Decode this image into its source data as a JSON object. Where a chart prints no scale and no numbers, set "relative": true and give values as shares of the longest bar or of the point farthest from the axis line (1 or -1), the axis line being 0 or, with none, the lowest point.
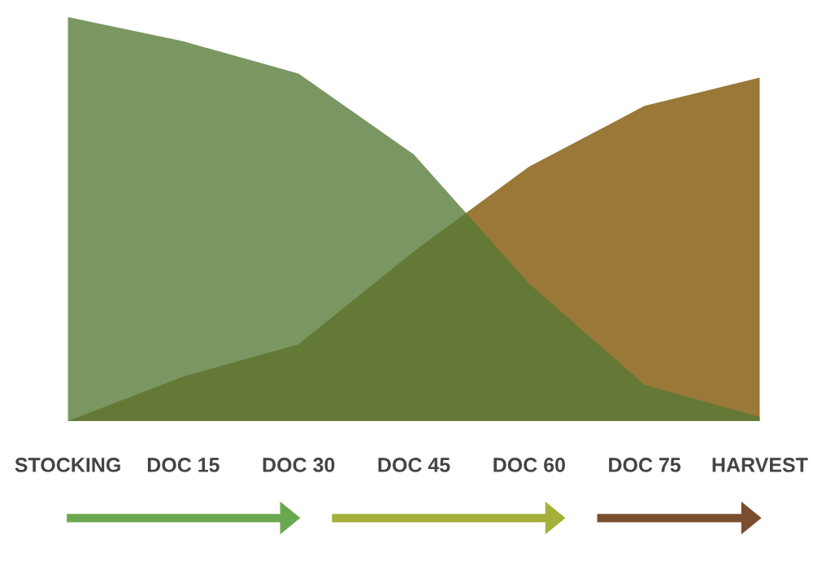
{
  "chart_data": {
    "type": "area",
    "relative": true,
    "categories": [
      "STOCKING",
      "DOC 15",
      "DOC 30",
      "DOC 45",
      "DOC 60",
      "DOC 75",
      "HARVEST"
    ],
    "series": [
      {
        "color": "#9a7838",
        "values": [
          0,
          0.11,
          0.19,
          0.42,
          0.63,
          0.78,
          0.85
        ]
      },
      {
        "color": "#557a36",
        "values": [
          1,
          0.94,
          0.86,
          0.66,
          0.34,
          0.09,
          0.01
        ]
      }
    ],
    "legend": false
  }
}
